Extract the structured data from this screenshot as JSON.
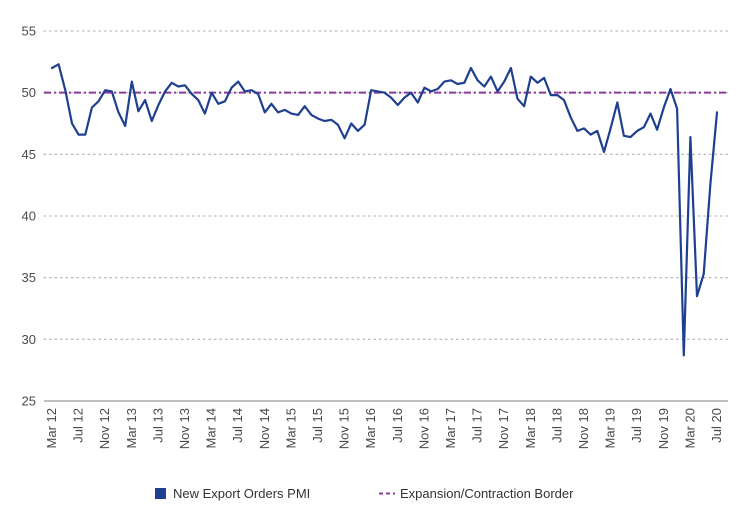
{
  "chart_data": {
    "type": "line",
    "title": "",
    "xlabel": "",
    "ylabel": "",
    "ylim": [
      25,
      55
    ],
    "yticks": [
      25,
      30,
      35,
      40,
      45,
      50,
      55
    ],
    "grid": "horizontal dotted",
    "legend_placement": "bottom",
    "x_tick_labels": [
      "Mar 12",
      "Jul 12",
      "Nov 12",
      "Mar 13",
      "Jul 13",
      "Nov 13",
      "Mar 14",
      "Jul 14",
      "Nov 14",
      "Mar 15",
      "Jul 15",
      "Nov 15",
      "Mar 16",
      "Jul 16",
      "Nov 16",
      "Mar 17",
      "Jul 17",
      "Nov 17",
      "Mar 18",
      "Jul 18",
      "Nov 18",
      "Mar 19",
      "Jul 19",
      "Nov 19",
      "Mar 20",
      "Jul 20"
    ],
    "x_start": "2012-03",
    "x_end": "2020-07",
    "series": [
      {
        "name": "New Export Orders PMI",
        "color": "#1f3f8f",
        "style": "solid",
        "values": [
          52.0,
          52.3,
          50.2,
          47.5,
          46.6,
          46.6,
          48.8,
          49.3,
          50.2,
          50.1,
          48.4,
          47.3,
          50.9,
          48.5,
          49.4,
          47.7,
          49.0,
          50.1,
          50.8,
          50.5,
          50.6,
          49.9,
          49.4,
          48.3,
          50.0,
          49.1,
          49.3,
          50.4,
          50.9,
          50.1,
          50.2,
          49.9,
          48.4,
          49.1,
          48.4,
          48.6,
          48.3,
          48.2,
          48.9,
          48.2,
          47.9,
          47.7,
          47.8,
          47.4,
          46.3,
          47.5,
          46.9,
          47.4,
          50.2,
          50.1,
          50.0,
          49.6,
          49.0,
          49.6,
          50.0,
          49.2,
          50.4,
          50.1,
          50.3,
          50.9,
          51.0,
          50.7,
          50.8,
          52.0,
          51.0,
          50.5,
          51.3,
          50.1,
          50.9,
          52.0,
          49.5,
          48.9,
          51.3,
          50.8,
          51.2,
          49.8,
          49.8,
          49.4,
          48.0,
          46.9,
          47.1,
          46.6,
          46.9,
          45.2,
          47.1,
          49.2,
          46.5,
          46.4,
          46.9,
          47.2,
          48.3,
          47.0,
          48.8,
          50.3,
          48.7,
          28.7,
          46.4,
          33.5,
          35.3,
          42.6,
          48.4
        ]
      },
      {
        "name": "Expansion/Contraction Border",
        "color": "#8a3b9c",
        "style": "dashed",
        "value": 50
      }
    ]
  }
}
